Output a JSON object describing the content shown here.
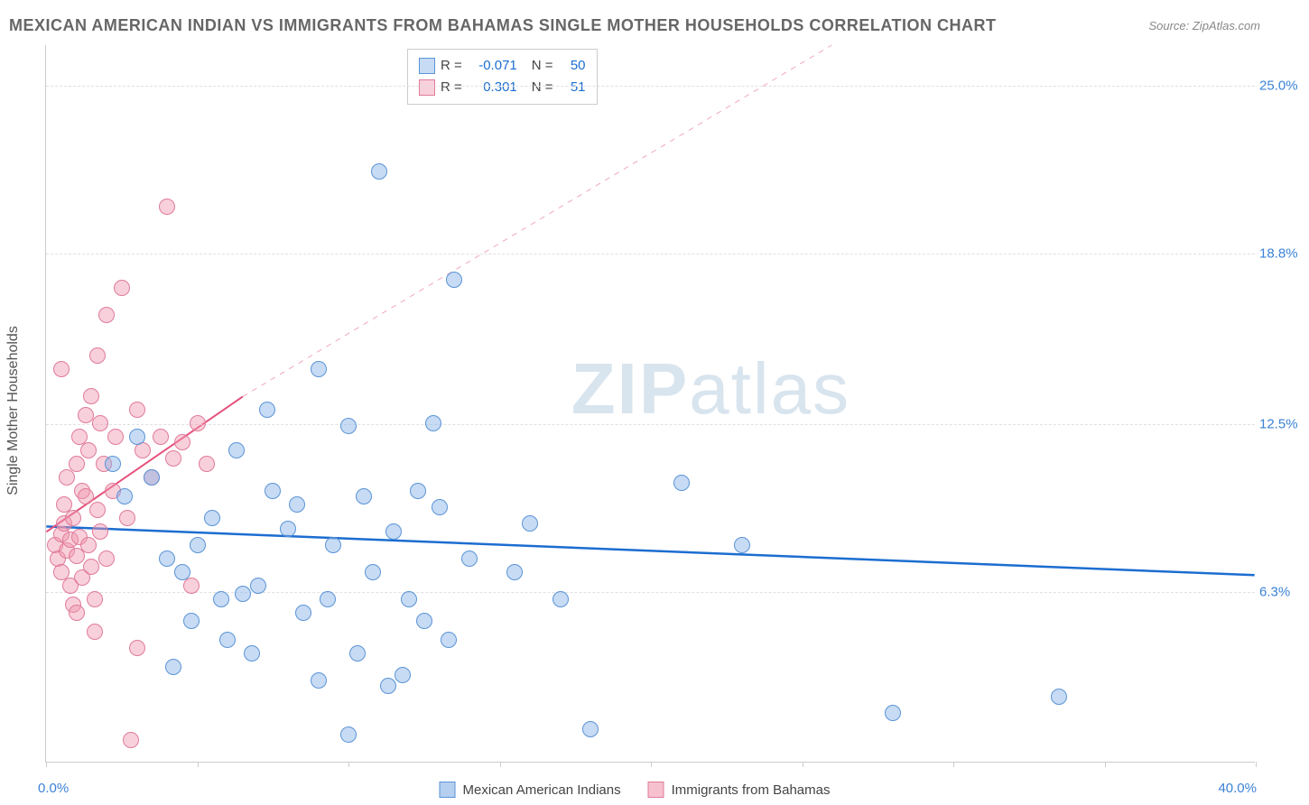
{
  "title": "MEXICAN AMERICAN INDIAN VS IMMIGRANTS FROM BAHAMAS SINGLE MOTHER HOUSEHOLDS CORRELATION CHART",
  "source": "Source: ZipAtlas.com",
  "y_axis_label": "Single Mother Households",
  "watermark": {
    "bold": "ZIP",
    "light": "atlas"
  },
  "chart": {
    "type": "scatter",
    "xlim": [
      0,
      40
    ],
    "ylim": [
      0,
      26.5
    ],
    "x_start_label": "0.0%",
    "x_end_label": "40.0%",
    "x_ticks": [
      0,
      5,
      10,
      15,
      20,
      25,
      30,
      35,
      40
    ],
    "y_ticks": [
      {
        "value": 6.3,
        "label": "6.3%"
      },
      {
        "value": 12.5,
        "label": "12.5%"
      },
      {
        "value": 18.8,
        "label": "18.8%"
      },
      {
        "value": 25.0,
        "label": "25.0%"
      }
    ],
    "background_color": "#ffffff",
    "grid_color": "#e0e0e0",
    "axis_color": "#cccccc",
    "tick_label_color": "#3b82d6",
    "point_radius": 9,
    "series": [
      {
        "name": "Mexican American Indians",
        "fill": "rgba(130,175,230,0.45)",
        "stroke": "#5a94d6",
        "R_label": "R =",
        "R_value": "-0.071",
        "N_label": "N =",
        "N_value": "50",
        "trend": {
          "color": "#1c6dd0",
          "width": 2.5,
          "dash": "none",
          "x1": 0,
          "y1": 8.7,
          "x2": 40,
          "y2": 6.9
        },
        "points": [
          [
            2.2,
            11.0
          ],
          [
            2.6,
            9.8
          ],
          [
            3.0,
            12.0
          ],
          [
            3.5,
            10.5
          ],
          [
            4.0,
            7.5
          ],
          [
            4.5,
            7.0
          ],
          [
            4.8,
            5.2
          ],
          [
            5.0,
            8.0
          ],
          [
            5.5,
            9.0
          ],
          [
            5.8,
            6.0
          ],
          [
            6.0,
            4.5
          ],
          [
            6.3,
            11.5
          ],
          [
            6.5,
            6.2
          ],
          [
            7.0,
            6.5
          ],
          [
            7.3,
            13.0
          ],
          [
            7.5,
            10.0
          ],
          [
            8.0,
            8.6
          ],
          [
            8.3,
            9.5
          ],
          [
            8.5,
            5.5
          ],
          [
            9.0,
            14.5
          ],
          [
            9.3,
            6.0
          ],
          [
            9.5,
            8.0
          ],
          [
            10.0,
            12.4
          ],
          [
            10.3,
            4.0
          ],
          [
            10.5,
            9.8
          ],
          [
            10.8,
            7.0
          ],
          [
            11.0,
            21.8
          ],
          [
            11.3,
            2.8
          ],
          [
            11.5,
            8.5
          ],
          [
            12.0,
            6.0
          ],
          [
            12.3,
            10.0
          ],
          [
            12.5,
            5.2
          ],
          [
            12.8,
            12.5
          ],
          [
            13.0,
            9.4
          ],
          [
            13.3,
            4.5
          ],
          [
            13.5,
            17.8
          ],
          [
            14.0,
            7.5
          ],
          [
            15.5,
            7.0
          ],
          [
            16.0,
            8.8
          ],
          [
            17.0,
            6.0
          ],
          [
            18.0,
            1.2
          ],
          [
            21.0,
            10.3
          ],
          [
            23.0,
            8.0
          ],
          [
            28.0,
            1.8
          ],
          [
            33.5,
            2.4
          ],
          [
            4.2,
            3.5
          ],
          [
            6.8,
            4.0
          ],
          [
            9.0,
            3.0
          ],
          [
            11.8,
            3.2
          ],
          [
            10.0,
            1.0
          ]
        ]
      },
      {
        "name": "Immigrants from Bahamas",
        "fill": "rgba(240,150,175,0.45)",
        "stroke": "#e07a9a",
        "R_label": "R =",
        "R_value": "0.301",
        "N_label": "N =",
        "N_value": "51",
        "trend": {
          "color": "#e5517c",
          "width": 2,
          "dash": "none",
          "x1": 0,
          "y1": 8.5,
          "x2": 6.5,
          "y2": 13.5
        },
        "trend_ext": {
          "color": "#f0a8bd",
          "width": 1,
          "dash": "6,6",
          "x1": 6.5,
          "y1": 13.5,
          "x2": 26,
          "y2": 26.5
        },
        "points": [
          [
            0.3,
            8.0
          ],
          [
            0.4,
            7.5
          ],
          [
            0.5,
            8.4
          ],
          [
            0.5,
            7.0
          ],
          [
            0.6,
            8.8
          ],
          [
            0.6,
            9.5
          ],
          [
            0.7,
            7.8
          ],
          [
            0.7,
            10.5
          ],
          [
            0.8,
            8.2
          ],
          [
            0.8,
            6.5
          ],
          [
            0.9,
            5.8
          ],
          [
            0.9,
            9.0
          ],
          [
            1.0,
            11.0
          ],
          [
            1.0,
            7.6
          ],
          [
            1.1,
            8.3
          ],
          [
            1.1,
            12.0
          ],
          [
            1.2,
            6.8
          ],
          [
            1.2,
            10.0
          ],
          [
            1.3,
            12.8
          ],
          [
            1.3,
            9.8
          ],
          [
            1.4,
            8.0
          ],
          [
            1.4,
            11.5
          ],
          [
            1.5,
            13.5
          ],
          [
            1.5,
            7.2
          ],
          [
            1.6,
            6.0
          ],
          [
            1.7,
            15.0
          ],
          [
            1.7,
            9.3
          ],
          [
            1.8,
            12.5
          ],
          [
            1.8,
            8.5
          ],
          [
            1.9,
            11.0
          ],
          [
            2.0,
            7.5
          ],
          [
            2.0,
            16.5
          ],
          [
            2.2,
            10.0
          ],
          [
            2.3,
            12.0
          ],
          [
            2.5,
            17.5
          ],
          [
            2.7,
            9.0
          ],
          [
            3.0,
            13.0
          ],
          [
            3.2,
            11.5
          ],
          [
            3.5,
            10.5
          ],
          [
            3.8,
            12.0
          ],
          [
            4.0,
            20.5
          ],
          [
            4.2,
            11.2
          ],
          [
            4.5,
            11.8
          ],
          [
            4.8,
            6.5
          ],
          [
            5.0,
            12.5
          ],
          [
            5.3,
            11.0
          ],
          [
            3.0,
            4.2
          ],
          [
            1.0,
            5.5
          ],
          [
            0.5,
            14.5
          ],
          [
            2.8,
            0.8
          ],
          [
            1.6,
            4.8
          ]
        ]
      }
    ],
    "stats_legend": {
      "r_color": "#1c6dd0",
      "text_color": "#444444"
    }
  },
  "bottom_legend": [
    {
      "label": "Mexican American Indians",
      "fill": "rgba(130,175,230,0.6)",
      "stroke": "#5a94d6"
    },
    {
      "label": "Immigrants from Bahamas",
      "fill": "rgba(240,150,175,0.6)",
      "stroke": "#e07a9a"
    }
  ]
}
